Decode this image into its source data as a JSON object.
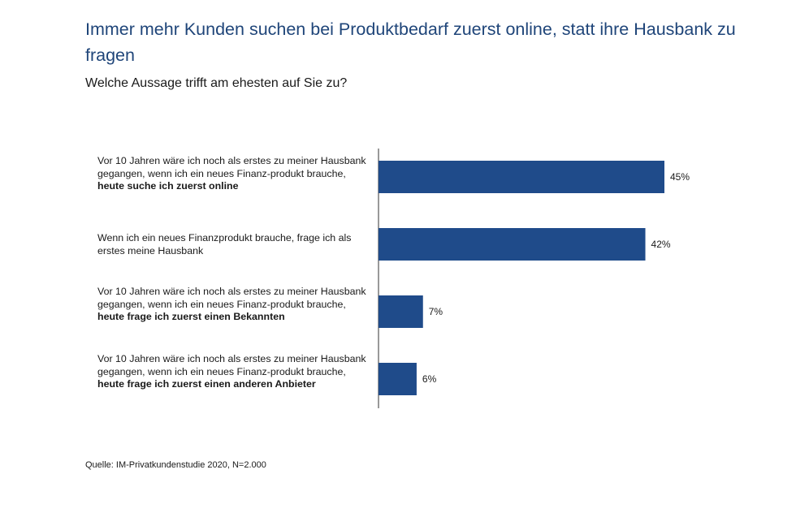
{
  "title": "Immer mehr Kunden suchen bei Produktbedarf zuerst online, statt ihre Hausbank zu fragen",
  "subtitle": "Welche Aussage trifft am ehesten auf Sie zu?",
  "source": "Quelle: IM-Privatkundenstudie 2020, N=2.000",
  "colors": {
    "title": "#1f4579",
    "bar": "#1f4b8a",
    "axis": "#333333"
  },
  "chart_data": {
    "type": "bar",
    "orientation": "horizontal",
    "categories": [
      {
        "plain": "Vor 10 Jahren wäre ich noch als erstes zu meiner Hausbank gegangen, wenn ich ein neues Finanz-produkt brauche, ",
        "bold": "heute suche ich zuerst online"
      },
      {
        "plain": "Wenn ich ein neues Finanzprodukt brauche, frage ich als erstes meine Hausbank",
        "bold": ""
      },
      {
        "plain": "Vor 10 Jahren wäre ich noch als erstes zu meiner Hausbank gegangen, wenn ich ein neues Finanz-produkt brauche, ",
        "bold": "heute frage ich zuerst einen Bekannten"
      },
      {
        "plain": "Vor 10 Jahren wäre ich noch als erstes zu meiner Hausbank gegangen, wenn ich ein neues Finanz-produkt brauche, ",
        "bold": "heute frage ich zuerst einen anderen Anbieter"
      }
    ],
    "values": [
      45,
      42,
      7,
      6
    ],
    "value_labels": [
      "45%",
      "42%",
      "7%",
      "6%"
    ],
    "unit": "%",
    "xlim": [
      0,
      50
    ],
    "grid": false,
    "legend": "none"
  }
}
